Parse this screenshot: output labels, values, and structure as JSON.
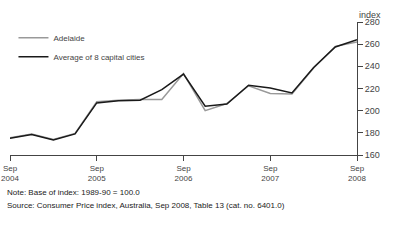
{
  "chart_data": {
    "type": "line",
    "categories": [
      "Sep\n2004",
      null,
      null,
      null,
      "Sep\n2005",
      null,
      null,
      null,
      "Sep\n2006",
      null,
      null,
      null,
      "Sep\n2007",
      null,
      null,
      null,
      "Sep\n2008"
    ],
    "series": [
      {
        "name": "Adelaide",
        "color": "#999999",
        "values": [
          175.5,
          179.0,
          174.0,
          179.5,
          208.0,
          209.5,
          210.0,
          210.0,
          233.5,
          200.0,
          206.5,
          222.5,
          215.5,
          215.0,
          238.5,
          258.0,
          262.0
        ]
      },
      {
        "name": "Average of 8 capital cities",
        "color": "#1a1a1a",
        "values": [
          175.0,
          178.5,
          173.5,
          179.0,
          207.0,
          209.0,
          209.5,
          219.0,
          233.0,
          204.0,
          206.0,
          223.0,
          220.5,
          216.0,
          239.0,
          257.5,
          264.0
        ]
      }
    ],
    "ylabel": "index",
    "ylim": [
      160,
      280
    ],
    "yticks": [
      160,
      180,
      200,
      220,
      240,
      260,
      280
    ],
    "annotations": [
      "Note: Base of index: 1989-90 = 100.0",
      "Source: Consumer Price index, Australia, Sep 2008, Table 13 (cat. no. 6401.0)"
    ],
    "legend": "upper left",
    "grid": false
  }
}
